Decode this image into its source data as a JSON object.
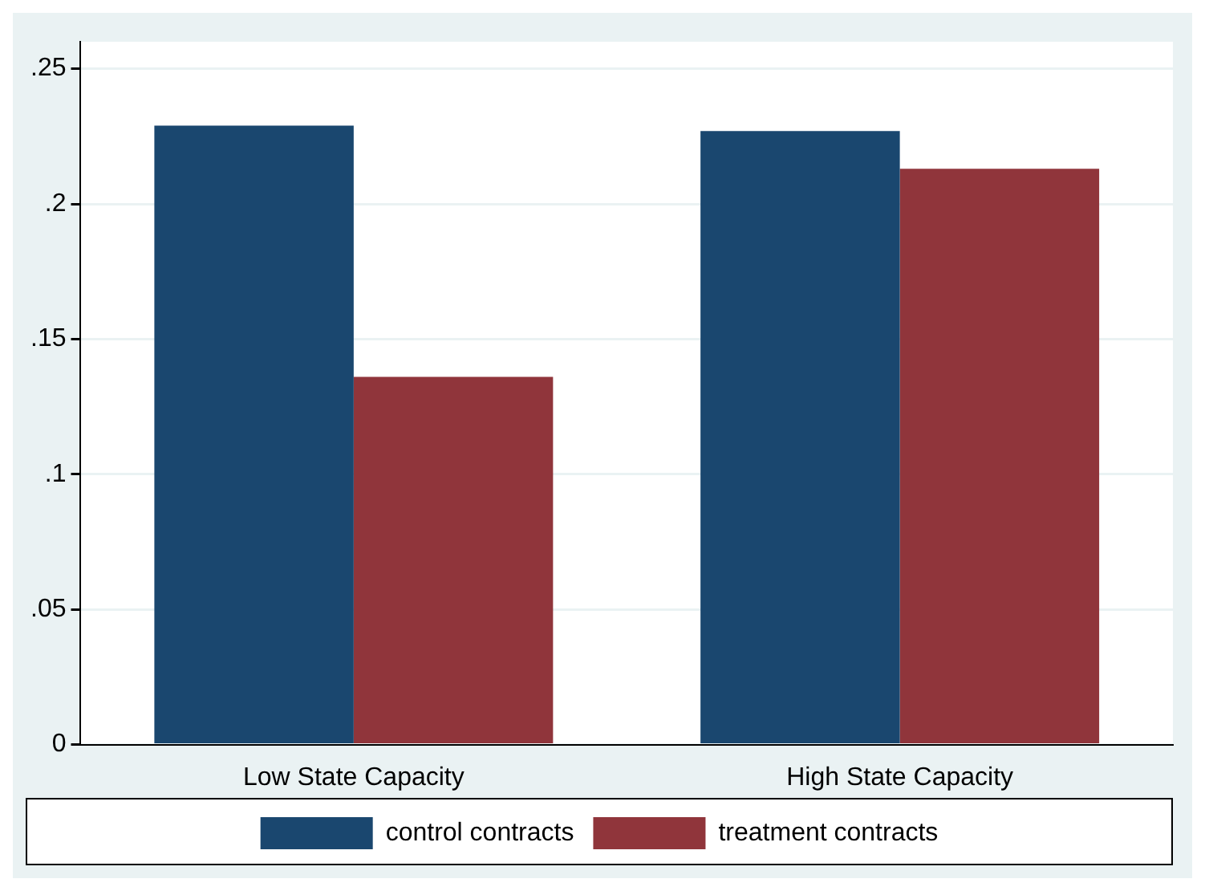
{
  "chart_data": {
    "type": "bar",
    "categories": [
      "Low State Capacity",
      "High State Capacity"
    ],
    "series": [
      {
        "name": "control contracts",
        "color": "#1a476f",
        "values": [
          0.229,
          0.227
        ]
      },
      {
        "name": "treatment contracts",
        "color": "#90353b",
        "values": [
          0.136,
          0.213
        ]
      }
    ],
    "ylim": [
      0,
      0.26
    ],
    "yticks": [
      {
        "value": 0,
        "label": "0"
      },
      {
        "value": 0.05,
        "label": ".05"
      },
      {
        "value": 0.1,
        "label": ".1"
      },
      {
        "value": 0.15,
        "label": ".15"
      },
      {
        "value": 0.2,
        "label": ".2"
      },
      {
        "value": 0.25,
        "label": ".25"
      }
    ],
    "grid": "y",
    "legend": "bottom"
  }
}
